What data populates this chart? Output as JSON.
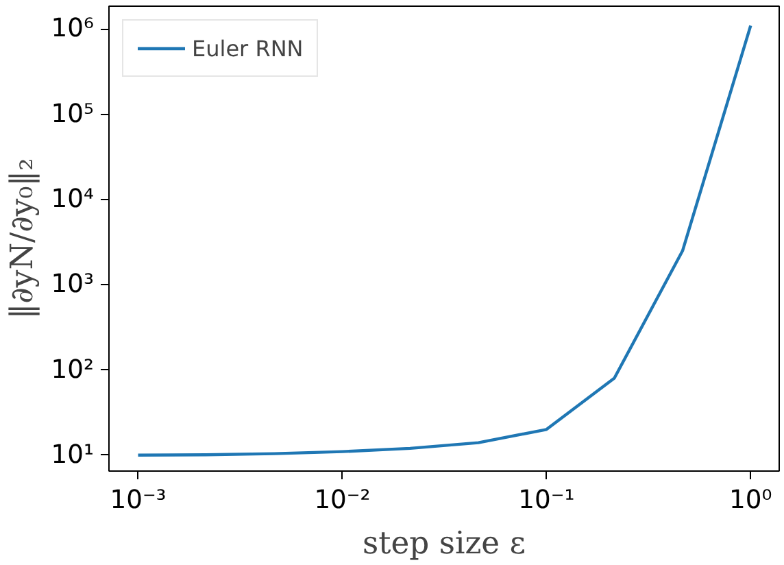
{
  "chart_data": {
    "type": "line",
    "xlabel": "step size ε",
    "ylabel": "‖∂yN/∂y₀‖₂",
    "log": "xy",
    "grid": false,
    "legend": "top left",
    "marker": "none",
    "line_style": "solid",
    "x": [
      0.001,
      0.00215,
      0.00464,
      0.01,
      0.0215,
      0.0464,
      0.1,
      0.215,
      0.464,
      1.0
    ],
    "series": [
      {
        "name": "Euler RNN",
        "color": "#1f77b4",
        "values": [
          10,
          10.1,
          10.4,
          11,
          12,
          14,
          20,
          80,
          2500,
          1100000
        ]
      }
    ],
    "xlim": [
      0.00072,
      1.38
    ],
    "ylim": [
      6.5,
      1860000
    ],
    "xticks": [
      {
        "value": 0.001,
        "label": "10⁻³"
      },
      {
        "value": 0.01,
        "label": "10⁻²"
      },
      {
        "value": 0.1,
        "label": "10⁻¹"
      },
      {
        "value": 1,
        "label": "10⁰"
      }
    ],
    "yticks": [
      {
        "value": 10,
        "label": "10¹"
      },
      {
        "value": 100,
        "label": "10²"
      },
      {
        "value": 1000,
        "label": "10³"
      },
      {
        "value": 10000,
        "label": "10⁴"
      },
      {
        "value": 100000,
        "label": "10⁵"
      },
      {
        "value": 1000000,
        "label": "10⁶"
      }
    ]
  }
}
